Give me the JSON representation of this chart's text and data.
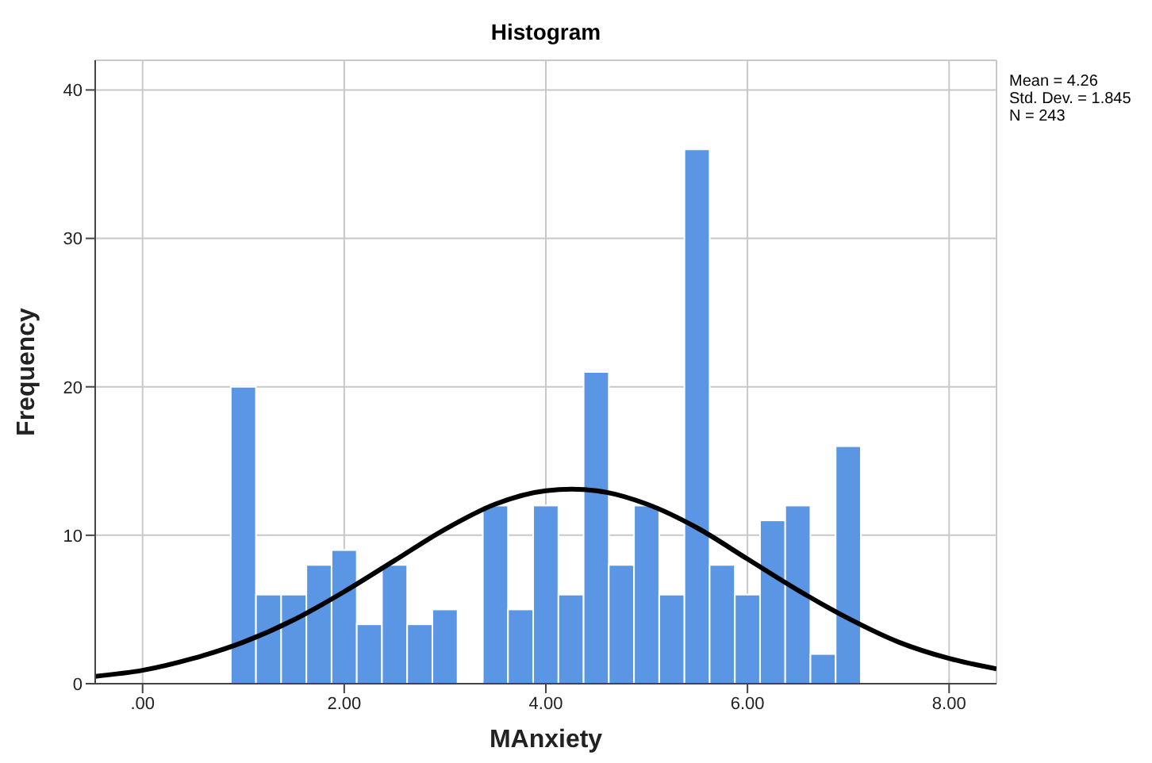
{
  "chart_data": {
    "type": "histogram",
    "title": "Histogram",
    "xlabel": "MAnxiety",
    "ylabel": "Frequency",
    "annotations": [
      "Mean = 4.26",
      "Std. Dev. = 1.845",
      "N = 243"
    ],
    "bins": [
      0.875,
      1.125,
      1.375,
      1.625,
      1.875,
      2.125,
      2.375,
      2.625,
      2.875,
      3.125,
      3.375,
      3.625,
      3.875,
      4.125,
      4.375,
      4.625,
      4.875,
      5.125,
      5.375,
      5.625,
      5.875,
      6.125,
      6.375,
      6.625,
      6.875,
      7.125
    ],
    "series": [
      {
        "color": "#5a96e4",
        "values": [
          20,
          6,
          6,
          8,
          9,
          4,
          8,
          4,
          5,
          0,
          12,
          5,
          12,
          6,
          21,
          8,
          12,
          6,
          36,
          8,
          6,
          11,
          12,
          2,
          16
        ]
      },
      {
        "type": "line",
        "color": "#000000",
        "x": [
          -0.47,
          0,
          0.5,
          1,
          1.5,
          2,
          2.5,
          3,
          3.5,
          4,
          4.26,
          4.5,
          5,
          5.5,
          6,
          6.5,
          7,
          7.5,
          8,
          8.47
        ],
        "values": [
          0.5,
          0.9,
          1.7,
          2.8,
          4.3,
          6.2,
          8.3,
          10.4,
          12.1,
          13.0,
          13.1,
          13.0,
          12.1,
          10.5,
          8.4,
          6.3,
          4.4,
          2.8,
          1.7,
          1.0
        ]
      }
    ],
    "xlim": [
      -0.47,
      8.47
    ],
    "xticks": [
      {
        "value": 0,
        "label": ".00"
      },
      {
        "value": 2,
        "label": "2.00"
      },
      {
        "value": 4,
        "label": "4.00"
      },
      {
        "value": 6,
        "label": "6.00"
      },
      {
        "value": 8,
        "label": "8.00"
      }
    ],
    "ylim": [
      0,
      42
    ],
    "yticks": [
      0,
      10,
      20,
      30,
      40
    ],
    "grid": true
  }
}
